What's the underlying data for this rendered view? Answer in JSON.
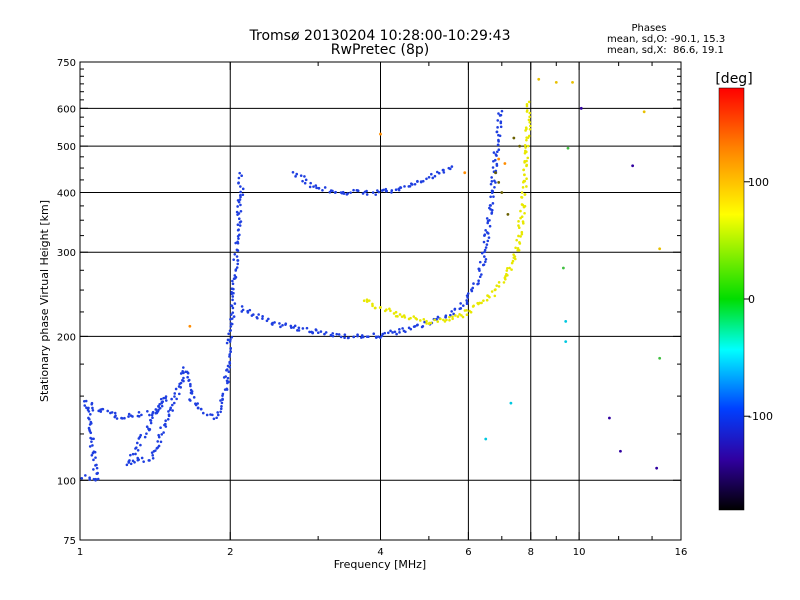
{
  "chart_data": {
    "type": "scatter",
    "title": "Tromsø 20130204 10:28:00-10:29:43",
    "subtitle": "RwPretec (8p)",
    "xlabel": "Frequency [MHz]",
    "ylabel": "Stationary phase Virtual Height [km]",
    "x_scale": "log",
    "y_scale": "log",
    "xlim": [
      1,
      16
    ],
    "ylim": [
      75,
      750
    ],
    "x_ticks": [
      1,
      2,
      4,
      6,
      8,
      10,
      16
    ],
    "y_ticks": [
      75,
      100,
      200,
      300,
      400,
      500,
      600,
      750
    ],
    "grid_x": [
      2,
      4,
      6,
      8,
      10
    ],
    "grid_y": [
      100,
      200,
      300,
      400,
      500,
      600
    ],
    "grid": true,
    "stats_box": {
      "heading": "Phases",
      "line1": "mean, sd,O: -90.1, 15.3",
      "line2": "mean, sd,X:  86.6, 19.1"
    },
    "colorbar": {
      "label": "[deg]",
      "range": [
        -180,
        180
      ],
      "ticks": [
        100,
        0,
        -100
      ],
      "colors": [
        "#ff0000",
        "#ff8000",
        "#ffff00",
        "#00dd00",
        "#00ffff",
        "#0040ff",
        "#3000a0",
        "#000000"
      ]
    },
    "traces": [
      {
        "color": "#1f3fe0",
        "points": [
          [
            1.02,
            102
          ],
          [
            1.05,
            101
          ],
          [
            1.08,
            100
          ],
          [
            1.03,
            146
          ],
          [
            1.06,
            142
          ],
          [
            1.2,
            136
          ],
          [
            1.3,
            137
          ],
          [
            1.42,
            139
          ],
          [
            1.48,
            150
          ],
          [
            1.25,
            108
          ],
          [
            1.32,
            110
          ],
          [
            1.38,
            111
          ],
          [
            1.42,
            117
          ],
          [
            1.46,
            128
          ],
          [
            1.55,
            148
          ],
          [
            1.6,
            163
          ],
          [
            1.62,
            171
          ],
          [
            1.68,
            146
          ],
          [
            1.75,
            140
          ],
          [
            1.85,
            136
          ],
          [
            1.9,
            138
          ],
          [
            1.95,
            150
          ],
          [
            1.98,
            175
          ],
          [
            2.0,
            205
          ],
          [
            2.02,
            225
          ],
          [
            2.04,
            265
          ],
          [
            2.06,
            310
          ],
          [
            2.08,
            350
          ],
          [
            2.1,
            400
          ],
          [
            2.1,
            440
          ]
        ]
      },
      {
        "color": "#1f3fe0",
        "points": [
          [
            2.1,
            230
          ],
          [
            2.2,
            222
          ],
          [
            2.4,
            215
          ],
          [
            2.6,
            210
          ],
          [
            2.8,
            206
          ],
          [
            3.0,
            204
          ],
          [
            3.2,
            202
          ],
          [
            3.4,
            201
          ],
          [
            3.6,
            200
          ],
          [
            3.8,
            200
          ],
          [
            4.0,
            201
          ],
          [
            4.2,
            203
          ],
          [
            4.4,
            205
          ],
          [
            4.6,
            208
          ],
          [
            4.8,
            210
          ],
          [
            5.0,
            213
          ],
          [
            5.3,
            218
          ],
          [
            5.6,
            225
          ],
          [
            5.9,
            235
          ],
          [
            6.2,
            255
          ],
          [
            6.4,
            280
          ],
          [
            6.5,
            310
          ],
          [
            6.6,
            350
          ],
          [
            6.7,
            400
          ],
          [
            6.8,
            470
          ],
          [
            6.9,
            540
          ],
          [
            7.0,
            600
          ]
        ]
      },
      {
        "color": "#1f3fe0",
        "points": [
          [
            2.7,
            440
          ],
          [
            2.9,
            415
          ],
          [
            3.1,
            405
          ],
          [
            3.3,
            402
          ],
          [
            3.5,
            400
          ],
          [
            3.8,
            400
          ],
          [
            4.1,
            402
          ],
          [
            4.4,
            408
          ],
          [
            4.7,
            418
          ],
          [
            5.0,
            430
          ],
          [
            5.3,
            440
          ],
          [
            5.6,
            455
          ]
        ]
      },
      {
        "color": "#e8e800",
        "points": [
          [
            3.7,
            240
          ],
          [
            3.9,
            232
          ],
          [
            4.1,
            228
          ],
          [
            4.3,
            222
          ],
          [
            4.6,
            218
          ],
          [
            4.9,
            215
          ],
          [
            5.2,
            215
          ],
          [
            5.5,
            218
          ],
          [
            5.8,
            222
          ],
          [
            6.1,
            228
          ],
          [
            6.4,
            236
          ],
          [
            6.7,
            246
          ],
          [
            7.0,
            260
          ],
          [
            7.3,
            278
          ],
          [
            7.5,
            300
          ],
          [
            7.6,
            330
          ],
          [
            7.7,
            370
          ],
          [
            7.8,
            420
          ],
          [
            7.85,
            480
          ],
          [
            7.9,
            540
          ],
          [
            7.9,
            620
          ]
        ]
      },
      {
        "color": "#6a6000",
        "points": [
          [
            6.8,
            440
          ],
          [
            6.9,
            420
          ],
          [
            7.0,
            400
          ],
          [
            7.2,
            360
          ],
          [
            7.4,
            520
          ],
          [
            7.6,
            500
          ]
        ]
      },
      {
        "color": "#ff8c00",
        "points": [
          [
            1.66,
            210
          ],
          [
            4.0,
            530
          ],
          [
            5.9,
            440
          ],
          [
            6.9,
            470
          ],
          [
            7.1,
            460
          ]
        ]
      },
      {
        "color": "#40c040",
        "points": [
          [
            9.5,
            495
          ],
          [
            9.3,
            278
          ],
          [
            14.5,
            180
          ]
        ]
      },
      {
        "color": "#00c8e0",
        "points": [
          [
            9.4,
            215
          ],
          [
            9.4,
            195
          ],
          [
            6.5,
            122
          ],
          [
            7.3,
            145
          ]
        ]
      },
      {
        "color": "#e8c000",
        "points": [
          [
            9.0,
            680
          ],
          [
            9.7,
            680
          ],
          [
            8.3,
            690
          ],
          [
            14.5,
            305
          ],
          [
            13.5,
            590
          ]
        ]
      },
      {
        "color": "#3000a0",
        "points": [
          [
            10.1,
            600
          ],
          [
            12.8,
            455
          ],
          [
            11.5,
            135
          ],
          [
            12.1,
            115
          ],
          [
            14.3,
            106
          ]
        ]
      }
    ]
  }
}
